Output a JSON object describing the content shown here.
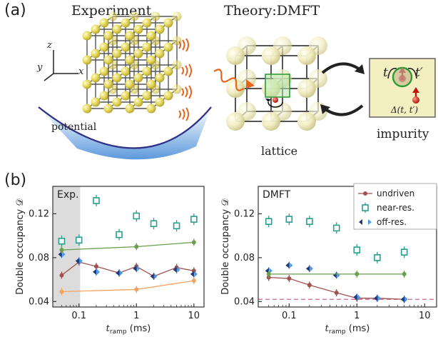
{
  "panel_a": {
    "label": "(a)",
    "experiment_title": "Experiment",
    "theory_title": "Theory:DMFT",
    "potential_label": "potential",
    "lattice_label": "lattice",
    "impurity_label": "impurity",
    "axis_z": "z",
    "axis_y": "y",
    "axis_x": "x",
    "impurity_t": "t",
    "impurity_tp": "t′",
    "impurity_delta": "Δ(t, t′)"
  },
  "panel_b": {
    "label": "(b)"
  },
  "chart_data": [
    {
      "type": "scatter",
      "panel_tag": "Exp.",
      "ylabel": "Double occupancy 𝒟",
      "xlabel_main": "t",
      "xlabel_sub": "ramp",
      "xlabel_unit": " (ms)",
      "xscale": "log",
      "xlim": [
        0.035,
        15
      ],
      "ylim": [
        0.035,
        0.145
      ],
      "xticks": [
        "0.1",
        "1",
        "10"
      ],
      "yticks": [
        "0.04",
        "0.08",
        "0.12"
      ],
      "shaded_region": [
        0.035,
        0.105
      ],
      "series": [
        {
          "name": "undriven",
          "color": "#a0524e",
          "marker": "circle",
          "x": [
            0.05,
            0.1,
            0.2,
            0.5,
            1,
            2,
            5,
            10
          ],
          "y": [
            0.064,
            0.076,
            0.072,
            0.066,
            0.072,
            0.063,
            0.071,
            0.068
          ]
        },
        {
          "name": "near-res.",
          "color": "#2a9d8f",
          "marker": "square",
          "x": [
            0.05,
            0.1,
            0.2,
            0.5,
            1,
            2,
            5,
            10
          ],
          "y": [
            0.095,
            0.096,
            0.132,
            0.101,
            0.118,
            0.111,
            0.109,
            0.115
          ]
        },
        {
          "name": "off-res.",
          "color": "#2f6fd0",
          "marker": "triangle",
          "x": [
            0.05,
            0.1,
            0.2,
            0.5,
            1,
            2,
            5,
            10
          ],
          "y": [
            0.083,
            0.077,
            0.067,
            0.066,
            0.07,
            0.063,
            0.069,
            0.065
          ]
        },
        {
          "name": "",
          "color": "#6b9e4f",
          "marker": "circle",
          "x": [
            0.05,
            1,
            10
          ],
          "y": [
            0.087,
            0.09,
            0.094
          ]
        },
        {
          "name": "",
          "color": "#f4a460",
          "marker": "circle",
          "x": [
            0.05,
            1,
            10
          ],
          "y": [
            0.049,
            0.051,
            0.059
          ]
        }
      ]
    },
    {
      "type": "scatter",
      "panel_tag": "DMFT",
      "ylabel": "Double occupancy 𝒟",
      "xlabel_main": "t",
      "xlabel_sub": "ramp",
      "xlabel_unit": " (ms)",
      "xscale": "log",
      "xlim": [
        0.035,
        15
      ],
      "ylim": [
        0.035,
        0.145
      ],
      "xticks": [
        "0.1",
        "1",
        "10"
      ],
      "yticks": [
        "0.04",
        "0.08",
        "0.12"
      ],
      "reference_line": 0.042,
      "series": [
        {
          "name": "undriven",
          "color": "#a0524e",
          "marker": "circle",
          "x": [
            0.05,
            0.1,
            0.2,
            0.5,
            1,
            2,
            5
          ],
          "y": [
            0.062,
            0.061,
            0.055,
            0.048,
            0.043,
            0.043,
            0.042
          ]
        },
        {
          "name": "near-res.",
          "color": "#2a9d8f",
          "marker": "square",
          "x": [
            0.05,
            0.1,
            0.2,
            0.5,
            1,
            2,
            5
          ],
          "y": [
            0.113,
            0.115,
            0.113,
            0.107,
            0.087,
            0.08,
            0.085
          ]
        },
        {
          "name": "off-res.",
          "color": "#2f6fd0",
          "marker": "triangle",
          "x": [
            0.05,
            0.1,
            0.2,
            0.5,
            1,
            2,
            5
          ],
          "y": [
            0.068,
            0.073,
            0.07,
            0.064,
            0.044,
            0.043,
            0.042
          ]
        },
        {
          "name": "",
          "color": "#6b9e4f",
          "marker": "circle",
          "x": [
            0.05,
            1,
            5
          ],
          "y": [
            0.065,
            0.065,
            0.065
          ]
        }
      ]
    }
  ]
}
